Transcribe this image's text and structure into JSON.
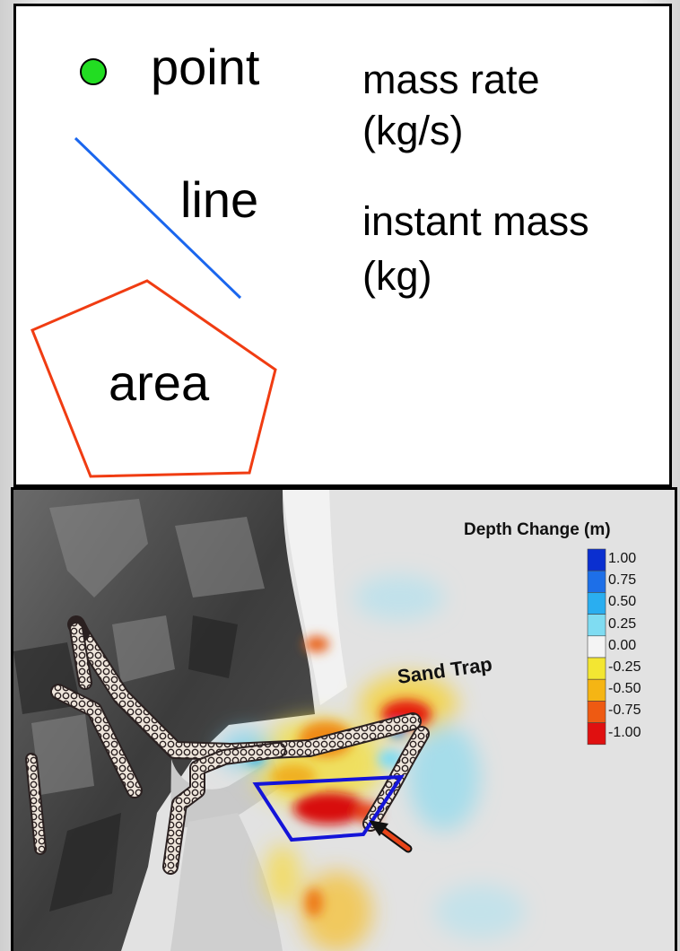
{
  "legend": {
    "point_label": "point",
    "line_label": "line",
    "area_label": "area",
    "mass_rate_label": "mass rate",
    "mass_rate_unit": "(kg/s)",
    "instant_mass_label": "instant mass",
    "instant_mass_unit": "(kg)",
    "colors": {
      "point_fill": "#22dd22",
      "line_stroke": "#1a66ee",
      "area_stroke": "#f03c12"
    }
  },
  "map": {
    "colorbar_title": "Depth Change (m)",
    "colorbar_ticks": [
      "1.00",
      "0.75",
      "0.50",
      "0.25",
      "0.00",
      "-0.25",
      "-0.50",
      "-0.75",
      "-1.00"
    ],
    "colorbar_colors": [
      "#0a2fd0",
      "#1d6fe8",
      "#2aaef0",
      "#7fdcf2",
      "#f4f4f4",
      "#f3e632",
      "#f5b514",
      "#ee5a12",
      "#e01010"
    ],
    "sand_trap_label": "Sand Trap",
    "sand_trap_polygon_color": "#1414d8",
    "arrow_color": "#e8451a"
  }
}
